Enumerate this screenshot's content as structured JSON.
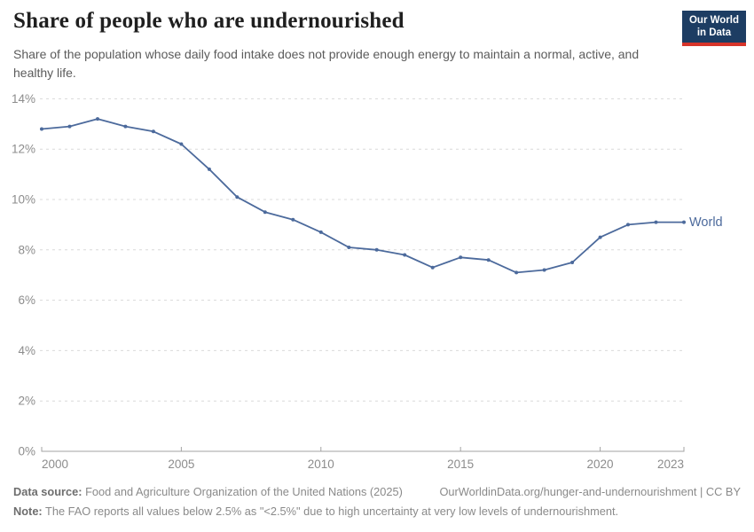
{
  "header": {
    "title": "Share of people who are undernourished",
    "subtitle": "Share of the population whose daily food intake does not provide enough energy to maintain a normal, active, and healthy life.",
    "logo": {
      "line1": "Our World",
      "line2": "in Data",
      "bg_color": "#1d3d63",
      "accent_color": "#d7342a"
    }
  },
  "chart_data": {
    "type": "line",
    "title": "Share of people who are undernourished",
    "x": [
      2000,
      2001,
      2002,
      2003,
      2004,
      2005,
      2006,
      2007,
      2008,
      2009,
      2010,
      2011,
      2012,
      2013,
      2014,
      2015,
      2016,
      2017,
      2018,
      2019,
      2020,
      2021,
      2022,
      2023
    ],
    "series": [
      {
        "name": "World",
        "color": "#4C6A9C",
        "values": [
          12.8,
          12.9,
          13.2,
          12.9,
          12.7,
          12.2,
          11.2,
          10.1,
          9.5,
          9.2,
          8.7,
          8.1,
          8.0,
          7.8,
          7.3,
          7.7,
          7.6,
          7.1,
          7.2,
          7.5,
          8.5,
          9.0,
          9.1,
          9.1
        ]
      }
    ],
    "xlabel": "",
    "ylabel": "",
    "ylim": [
      0,
      14
    ],
    "yticks": [
      0,
      2,
      4,
      6,
      8,
      10,
      12,
      14
    ],
    "ytick_suffix": "%",
    "xticks": [
      2000,
      2005,
      2010,
      2015,
      2020,
      2023
    ],
    "grid": "horizontal-dashed",
    "legend_position": "end-of-line",
    "end_label": "World",
    "colors": {
      "gridline": "#d9d9d9",
      "axis": "#a3a3a3",
      "tick_label": "#8c8c8c"
    }
  },
  "footer": {
    "source_label": "Data source:",
    "source_text": " Food and Agriculture Organization of the United Nations (2025)",
    "link_text": "OurWorldinData.org/hunger-and-undernourishment | CC BY",
    "note_label": "Note:",
    "note_text": " The FAO reports all values below 2.5% as \"<2.5%\" due to high uncertainty at very low levels of undernourishment."
  }
}
